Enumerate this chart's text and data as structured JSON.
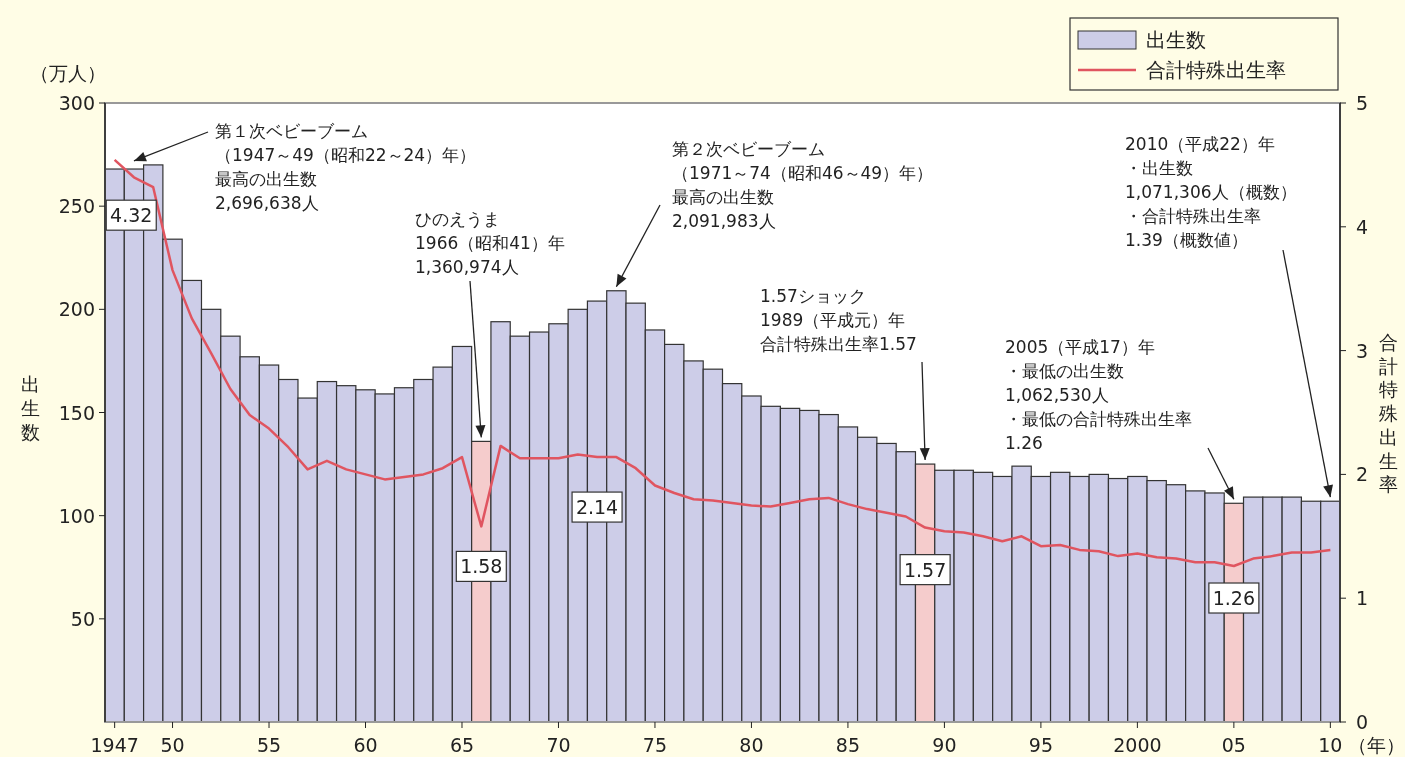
{
  "chart_data": {
    "type": "bar",
    "x": [
      1947,
      1948,
      1949,
      1950,
      1951,
      1952,
      1953,
      1954,
      1955,
      1956,
      1957,
      1958,
      1959,
      1960,
      1961,
      1962,
      1963,
      1964,
      1965,
      1966,
      1967,
      1968,
      1969,
      1970,
      1971,
      1972,
      1973,
      1974,
      1975,
      1976,
      1977,
      1978,
      1979,
      1980,
      1981,
      1982,
      1983,
      1984,
      1985,
      1986,
      1987,
      1988,
      1989,
      1990,
      1991,
      1992,
      1993,
      1994,
      1995,
      1996,
      1997,
      1998,
      1999,
      2000,
      2001,
      2002,
      2003,
      2004,
      2005,
      2006,
      2007,
      2008,
      2009,
      2010
    ],
    "xlim": [
      1946.5,
      2010.5
    ],
    "xticks": [
      {
        "value": 1947,
        "label": "1947"
      },
      {
        "value": 1950,
        "label": "50"
      },
      {
        "value": 1955,
        "label": "55"
      },
      {
        "value": 1960,
        "label": "60"
      },
      {
        "value": 1965,
        "label": "65"
      },
      {
        "value": 1970,
        "label": "70"
      },
      {
        "value": 1975,
        "label": "75"
      },
      {
        "value": 1980,
        "label": "80"
      },
      {
        "value": 1985,
        "label": "85"
      },
      {
        "value": 1990,
        "label": "90"
      },
      {
        "value": 1995,
        "label": "95"
      },
      {
        "value": 2000,
        "label": "2000"
      },
      {
        "value": 2005,
        "label": "05"
      },
      {
        "value": 2010,
        "label": "10"
      }
    ],
    "xlabel": "（年）",
    "ylabel": "出生数",
    "y2label": "合計特殊出生率",
    "ylim": [
      0,
      300
    ],
    "yticks": [
      50,
      100,
      150,
      200,
      250,
      300
    ],
    "y2lim": [
      0,
      5
    ],
    "y2ticks": [
      0,
      1,
      2,
      3,
      4,
      5
    ],
    "legend": "top right",
    "series": [
      {
        "name": "出生数",
        "color": "#cdcde8",
        "colors": [
          "#cdcde8",
          "#cdcde8",
          "#cdcde8",
          "#cdcde8",
          "#cdcde8",
          "#cdcde8",
          "#cdcde8",
          "#cdcde8",
          "#cdcde8",
          "#cdcde8",
          "#cdcde8",
          "#cdcde8",
          "#cdcde8",
          "#cdcde8",
          "#cdcde8",
          "#cdcde8",
          "#cdcde8",
          "#cdcde8",
          "#cdcde8",
          "#f5cccc",
          "#cdcde8",
          "#cdcde8",
          "#cdcde8",
          "#cdcde8",
          "#cdcde8",
          "#cdcde8",
          "#cdcde8",
          "#cdcde8",
          "#cdcde8",
          "#cdcde8",
          "#cdcde8",
          "#cdcde8",
          "#cdcde8",
          "#cdcde8",
          "#cdcde8",
          "#cdcde8",
          "#cdcde8",
          "#cdcde8",
          "#cdcde8",
          "#cdcde8",
          "#cdcde8",
          "#cdcde8",
          "#f5cccc",
          "#cdcde8",
          "#cdcde8",
          "#cdcde8",
          "#cdcde8",
          "#cdcde8",
          "#cdcde8",
          "#cdcde8",
          "#cdcde8",
          "#cdcde8",
          "#cdcde8",
          "#cdcde8",
          "#cdcde8",
          "#cdcde8",
          "#cdcde8",
          "#cdcde8",
          "#f5cccc",
          "#cdcde8",
          "#cdcde8",
          "#cdcde8",
          "#cdcde8",
          "#cdcde8"
        ],
        "values": [
          268,
          268,
          270,
          234,
          214,
          200,
          187,
          177,
          173,
          166,
          157,
          165,
          163,
          161,
          159,
          162,
          166,
          172,
          182,
          136,
          194,
          187,
          189,
          193,
          200,
          204,
          209,
          203,
          190,
          183,
          175,
          171,
          164,
          158,
          153,
          152,
          151,
          149,
          143,
          138,
          135,
          131,
          125,
          122,
          122,
          121,
          119,
          124,
          119,
          121,
          119,
          120,
          118,
          119,
          117,
          115,
          112,
          111,
          106,
          109,
          109,
          109,
          107,
          107
        ]
      },
      {
        "name": "合計特殊出生率",
        "type": "line",
        "axis": "y2",
        "color": "#e05560",
        "values": [
          4.54,
          4.4,
          4.32,
          3.65,
          3.26,
          2.98,
          2.69,
          2.48,
          2.37,
          2.22,
          2.04,
          2.11,
          2.04,
          2.0,
          1.96,
          1.98,
          2.0,
          2.05,
          2.14,
          1.58,
          2.23,
          2.13,
          2.13,
          2.13,
          2.16,
          2.14,
          2.14,
          2.05,
          1.91,
          1.85,
          1.8,
          1.79,
          1.77,
          1.75,
          1.74,
          1.77,
          1.8,
          1.81,
          1.76,
          1.72,
          1.69,
          1.66,
          1.57,
          1.54,
          1.53,
          1.5,
          1.46,
          1.5,
          1.42,
          1.43,
          1.39,
          1.38,
          1.34,
          1.36,
          1.33,
          1.32,
          1.29,
          1.29,
          1.26,
          1.32,
          1.34,
          1.37,
          1.37,
          1.39
        ],
        "value_labels": [
          null,
          null,
          "4.32",
          null,
          null,
          null,
          null,
          null,
          null,
          null,
          null,
          null,
          null,
          null,
          null,
          null,
          null,
          null,
          null,
          "1.58",
          null,
          null,
          null,
          null,
          null,
          "2.14",
          null,
          null,
          null,
          null,
          null,
          null,
          null,
          null,
          null,
          null,
          null,
          null,
          null,
          null,
          null,
          null,
          "1.57",
          null,
          null,
          null,
          null,
          null,
          null,
          null,
          null,
          null,
          null,
          null,
          null,
          null,
          null,
          null,
          "1.26",
          null,
          null,
          null,
          null,
          null
        ]
      }
    ],
    "annotations": [
      "（万人）",
      {
        "text": "第１次ベビーブーム（1947～49（昭和22～24）年）最高の出生数2,696,638人",
        "x": 1948,
        "y": 270
      },
      {
        "text": "ひのえうま1966（昭和41）年1,360,974人",
        "x": 1966,
        "y": 136
      },
      {
        "text": "第２次ベビーブーム（1971～74（昭和46～49）年）最高の出生数2,091,983人",
        "x": 1973,
        "y": 209
      },
      {
        "text": "1.57ショック1989（平成元）年合計特殊出生率1.57",
        "x": 1989,
        "y": 125
      },
      {
        "text": "2005（平成17）年・最低の出生数1,062,530人・最低の合計特殊出生率1.26",
        "x": 2005,
        "y": 106
      },
      {
        "text": "2010（平成22）年・出生数1,071,306人（概数）・合計特殊出生率1.39（概数値）",
        "x": 2010,
        "y": 107
      }
    ]
  }
}
